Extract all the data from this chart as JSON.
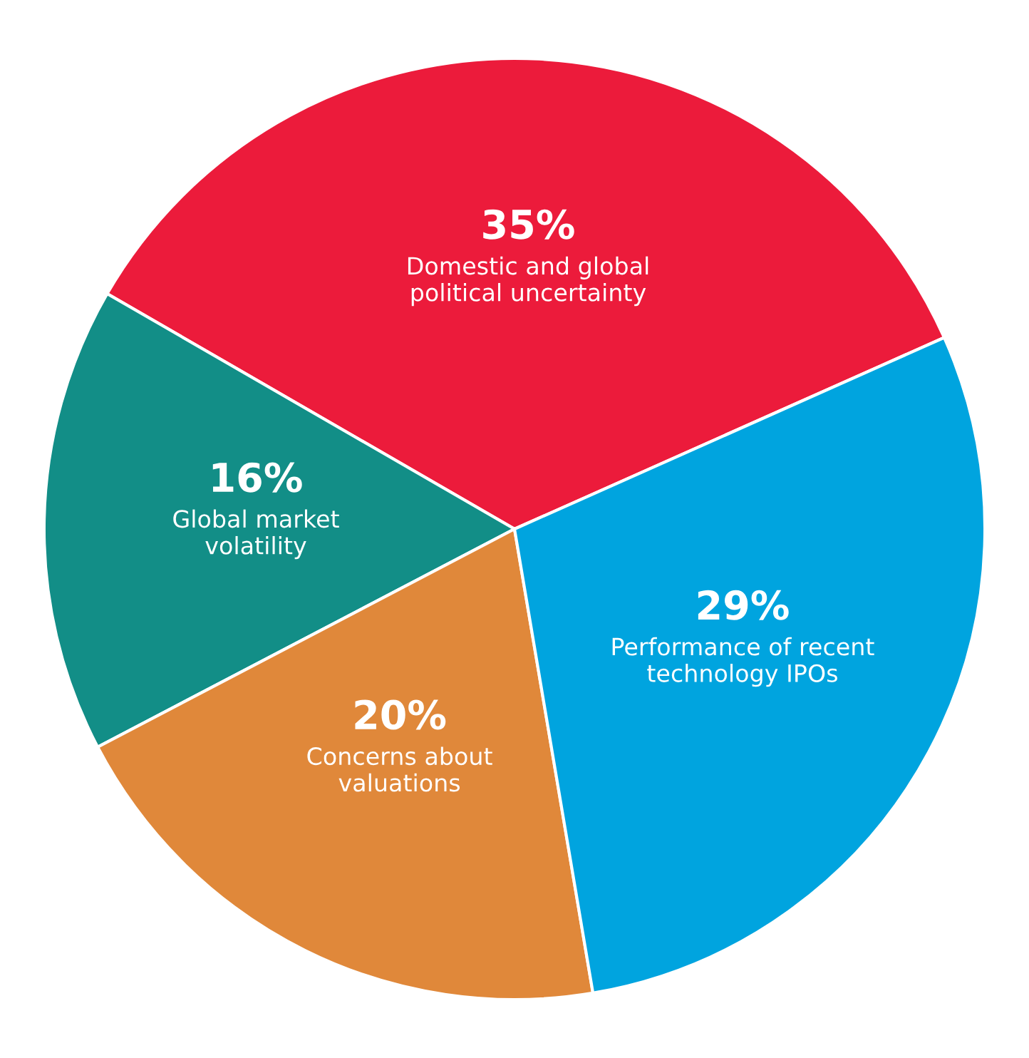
{
  "chart_data": {
    "type": "pie",
    "categories": [
      "Domestic and global\npolitical uncertainty",
      "Global market\nvolatility",
      "Concerns about\nvaluations",
      "Performance of recent\ntechnology IPOs"
    ],
    "values": [
      35,
      16,
      20,
      29
    ],
    "value_labels": [
      "35%",
      "16%",
      "20%",
      "29%"
    ],
    "colors": [
      "#ec1b3b",
      "#128e87",
      "#e0883a",
      "#00a4df"
    ],
    "legend": false
  }
}
